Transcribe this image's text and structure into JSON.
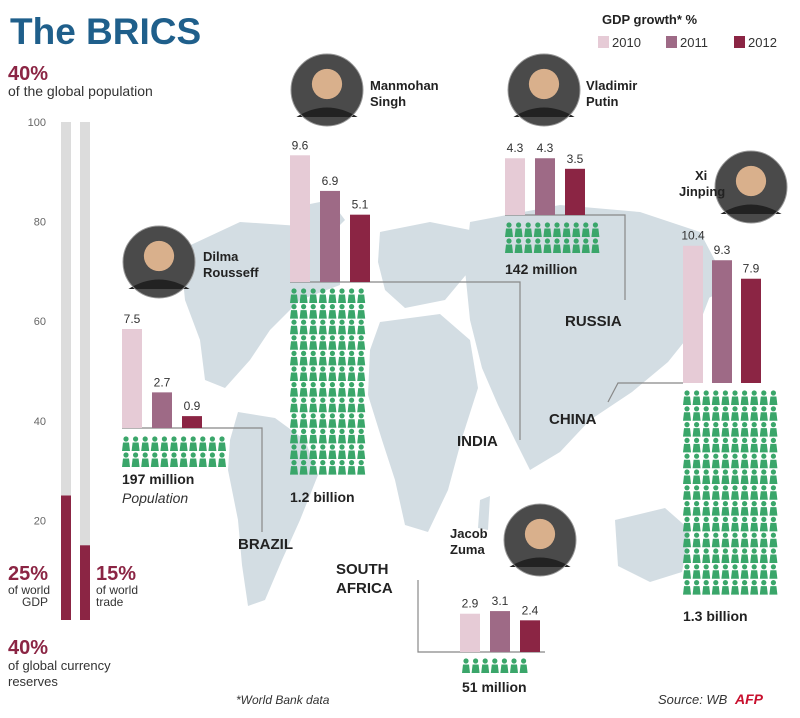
{
  "title": "The BRICS",
  "colors": {
    "title": "#1f5f8b",
    "accent": "#8b2544",
    "y2010": "#e6cbd6",
    "y2011": "#9e6a86",
    "y2012": "#8b2544",
    "people": "#3aa66a",
    "map": "#d3dde3",
    "bar_track": "#dcdcdc"
  },
  "left_panel": {
    "top_stat": "40%",
    "top_text": "of the global population",
    "gdp_pct": "25%",
    "gdp_text_1": "of world",
    "gdp_text_2": "GDP",
    "trade_pct": "15%",
    "trade_text_1": "of world",
    "trade_text_2": "trade",
    "bottom_stat": "40%",
    "bottom_text_1": "of global currency",
    "bottom_text_2": "reserves"
  },
  "legend": {
    "title": "GDP growth* %",
    "items": [
      "2010",
      "2011",
      "2012"
    ]
  },
  "footnote": "*World Bank data",
  "source": "Source: WB",
  "logo": "AFP",
  "countries": {
    "brazil": "BRAZIL",
    "russia": "RUSSIA",
    "india": "INDIA",
    "china": "CHINA",
    "south_africa_1": "SOUTH",
    "south_africa_2": "AFRICA"
  },
  "leaders": {
    "brazil": [
      "Dilma",
      "Rousseff"
    ],
    "india": [
      "Manmohan",
      "Singh"
    ],
    "russia": [
      "Vladimir",
      "Putin"
    ],
    "china": [
      "Xi",
      "Jinping"
    ],
    "south_africa": [
      "Jacob",
      "Zuma"
    ]
  },
  "population_labels": {
    "brazil": "197 million",
    "brazil_caption": "Population",
    "india": "1.2 billion",
    "russia": "142 million",
    "china": "1.3 billion",
    "south_africa": "51 million"
  },
  "chart_data": [
    {
      "type": "bar",
      "title": "GDP growth* %",
      "categories": [
        "2010",
        "2011",
        "2012"
      ],
      "series": [
        {
          "name": "Brazil",
          "values": [
            7.5,
            2.7,
            0.9
          ]
        },
        {
          "name": "India",
          "values": [
            9.6,
            6.9,
            5.1
          ]
        },
        {
          "name": "Russia",
          "values": [
            4.3,
            4.3,
            3.5
          ]
        },
        {
          "name": "China",
          "values": [
            10.4,
            9.3,
            7.9
          ]
        },
        {
          "name": "South Africa",
          "values": [
            2.9,
            3.1,
            2.4
          ]
        }
      ]
    },
    {
      "type": "bar",
      "categories": [
        "of world GDP",
        "of world trade"
      ],
      "values": [
        25,
        15
      ],
      "ylim": [
        0,
        100
      ],
      "yticks": [
        20,
        40,
        60,
        80,
        100
      ]
    }
  ]
}
